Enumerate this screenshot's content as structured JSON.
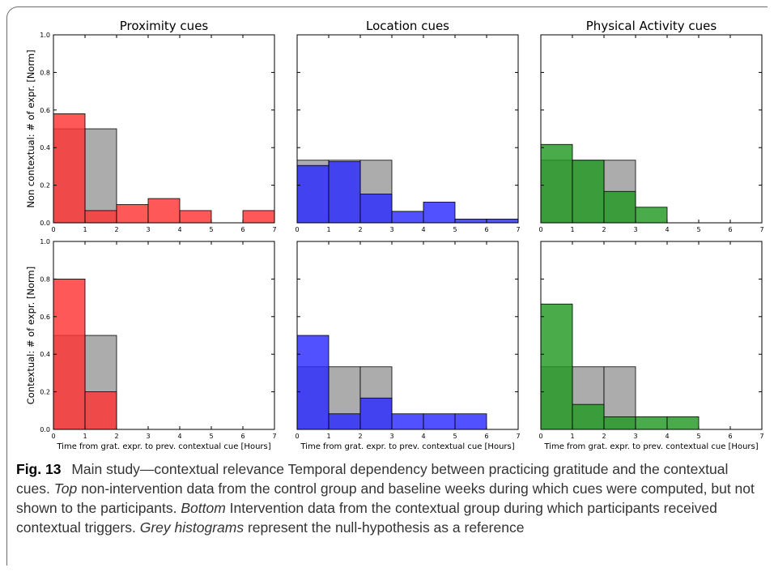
{
  "figure_label": "Fig. 13",
  "caption": {
    "p1": "Main study—contextual relevance Temporal dependency between practicing gratitude and the contextual cues.",
    "top": "Top",
    "p2": "non-intervention data from the control group and baseline weeks during which cues were computed, but not shown to the participants.",
    "bottom": "Bottom",
    "p3": "Intervention data from the contextual group during which participants received contextual triggers.",
    "grey": "Grey histograms",
    "p4": "represent the null-hypothesis as a reference"
  },
  "colors": {
    "grey": "#a8a8a8",
    "proximity": "#ff3333",
    "location": "#2b2bff",
    "activity": "#229922",
    "axis": "#000000"
  },
  "chart_data": [
    {
      "type": "bar",
      "panel": "top-left",
      "title": "Proximity cues",
      "ylabel": "Non contextual: # of expr. [Norm]",
      "xlabel": "",
      "xlim": [
        0,
        7
      ],
      "ylim": [
        0,
        1.0
      ],
      "xticks": [
        "0",
        "1",
        "2",
        "3",
        "4",
        "5",
        "6",
        "7"
      ],
      "yticks": [
        "0.0",
        "0.2",
        "0.4",
        "0.6",
        "0.8",
        "1.0"
      ],
      "bin_edges": [
        0,
        1,
        2,
        3,
        4,
        5,
        6,
        7
      ],
      "series": [
        {
          "role": "null",
          "color_key": "grey",
          "values": [
            0.5,
            0.5,
            0,
            0,
            0,
            0,
            0
          ]
        },
        {
          "role": "observed",
          "color_key": "proximity",
          "values": [
            0.58,
            0.065,
            0.097,
            0.129,
            0.065,
            0,
            0.065
          ]
        }
      ]
    },
    {
      "type": "bar",
      "panel": "top-middle",
      "title": "Location cues",
      "ylabel": "",
      "xlabel": "",
      "xlim": [
        0,
        7
      ],
      "ylim": [
        0,
        1.0
      ],
      "xticks": [
        "0",
        "1",
        "2",
        "3",
        "4",
        "5",
        "6",
        "7"
      ],
      "yticks": [],
      "bin_edges": [
        0,
        1,
        2,
        3,
        4,
        5,
        6,
        7
      ],
      "series": [
        {
          "role": "null",
          "color_key": "grey",
          "values": [
            0.333,
            0.333,
            0.333,
            0,
            0,
            0,
            0
          ]
        },
        {
          "role": "observed",
          "color_key": "location",
          "values": [
            0.305,
            0.325,
            0.153,
            0.061,
            0.11,
            0.02,
            0.02
          ]
        }
      ]
    },
    {
      "type": "bar",
      "panel": "top-right",
      "title": "Physical Activity cues",
      "ylabel": "",
      "xlabel": "",
      "xlim": [
        0,
        7
      ],
      "ylim": [
        0,
        1.0
      ],
      "xticks": [
        "0",
        "1",
        "2",
        "3",
        "4",
        "5",
        "6",
        "7"
      ],
      "yticks": [],
      "bin_edges": [
        0,
        1,
        2,
        3,
        4,
        5,
        6,
        7
      ],
      "series": [
        {
          "role": "null",
          "color_key": "grey",
          "values": [
            0.333,
            0.333,
            0.333,
            0,
            0,
            0,
            0
          ]
        },
        {
          "role": "observed",
          "color_key": "activity",
          "values": [
            0.417,
            0.333,
            0.167,
            0.083,
            0,
            0,
            0
          ]
        }
      ]
    },
    {
      "type": "bar",
      "panel": "bottom-left",
      "title": "",
      "ylabel": "Contextual: # of expr. [Norm]",
      "xlabel": "Time from grat. expr. to prev. contextual cue [Hours]",
      "xlim": [
        0,
        7
      ],
      "ylim": [
        0,
        1.0
      ],
      "xticks": [
        "0",
        "1",
        "2",
        "3",
        "4",
        "5",
        "6",
        "7"
      ],
      "yticks": [
        "0.0",
        "0.2",
        "0.4",
        "0.6",
        "0.8",
        "1.0"
      ],
      "bin_edges": [
        0,
        1,
        2,
        3,
        4,
        5,
        6,
        7
      ],
      "series": [
        {
          "role": "null",
          "color_key": "grey",
          "values": [
            0.5,
            0.5,
            0,
            0,
            0,
            0,
            0
          ]
        },
        {
          "role": "observed",
          "color_key": "proximity",
          "values": [
            0.8,
            0.2,
            0,
            0,
            0,
            0,
            0
          ]
        }
      ]
    },
    {
      "type": "bar",
      "panel": "bottom-middle",
      "title": "",
      "ylabel": "",
      "xlabel": "Time from grat. expr. to prev. contextual cue [Hours]",
      "xlim": [
        0,
        7
      ],
      "ylim": [
        0,
        1.0
      ],
      "xticks": [
        "0",
        "1",
        "2",
        "3",
        "4",
        "5",
        "6",
        "7"
      ],
      "yticks": [],
      "bin_edges": [
        0,
        1,
        2,
        3,
        4,
        5,
        6,
        7
      ],
      "series": [
        {
          "role": "null",
          "color_key": "grey",
          "values": [
            0.333,
            0.333,
            0.333,
            0,
            0,
            0,
            0
          ]
        },
        {
          "role": "observed",
          "color_key": "location",
          "values": [
            0.5,
            0.083,
            0.167,
            0.083,
            0.083,
            0.083,
            0
          ]
        }
      ]
    },
    {
      "type": "bar",
      "panel": "bottom-right",
      "title": "",
      "ylabel": "",
      "xlabel": "Time from grat. expr. to prev. contextual cue [Hours]",
      "xlim": [
        0,
        7
      ],
      "ylim": [
        0,
        1.0
      ],
      "xticks": [
        "0",
        "1",
        "2",
        "3",
        "4",
        "5",
        "6",
        "7"
      ],
      "yticks": [],
      "bin_edges": [
        0,
        1,
        2,
        3,
        4,
        5,
        6,
        7
      ],
      "series": [
        {
          "role": "null",
          "color_key": "grey",
          "values": [
            0.333,
            0.333,
            0.333,
            0,
            0,
            0,
            0
          ]
        },
        {
          "role": "observed",
          "color_key": "activity",
          "values": [
            0.667,
            0.133,
            0.067,
            0.067,
            0.067,
            0,
            0
          ]
        }
      ]
    }
  ]
}
